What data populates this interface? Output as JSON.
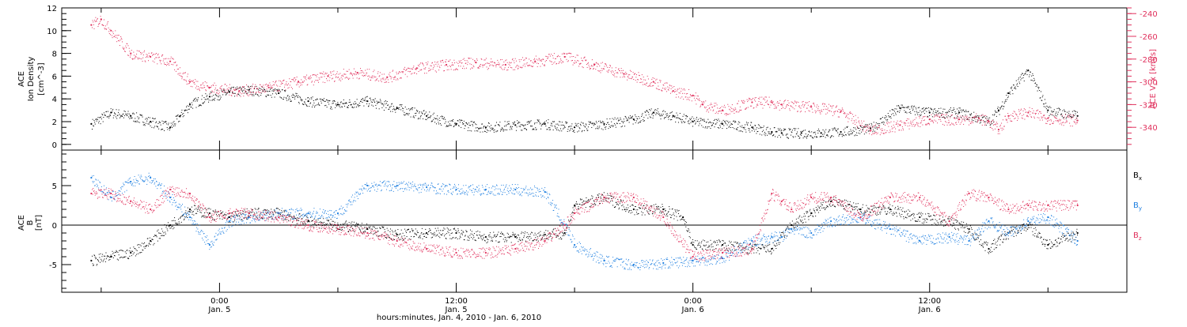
{
  "colors": {
    "black": "#000000",
    "blue": "#1e7fe0",
    "red": "#e0305c"
  },
  "chart_data": [
    {
      "type": "scatter",
      "panel": "top",
      "x_unit": "hours since 2010-01-04 00:00",
      "left_axis": {
        "label_lines": [
          "ACE",
          "Ion Density",
          "[cm^-3]"
        ],
        "ylim": [
          -0.5,
          12
        ],
        "ticks": [
          "0",
          "2",
          "4",
          "6",
          "8",
          "10",
          "12"
        ],
        "tick_values": [
          0,
          2,
          4,
          6,
          8,
          10,
          12
        ]
      },
      "right_axis": {
        "label": "ACE V_x [km/s]",
        "ylim": [
          -360,
          -235
        ],
        "ticks": [
          "-240",
          "-260",
          "-280",
          "-300",
          "-320",
          "-340"
        ],
        "tick_values": [
          -240,
          -260,
          -280,
          -300,
          -320,
          -340
        ]
      },
      "series": [
        {
          "axis": "left",
          "color": "black",
          "x": [
            17.5,
            18.5,
            19.5,
            20.5,
            21.5,
            22.0,
            22.5,
            23.5,
            24.5,
            25.5,
            27.0,
            28.5,
            30.0,
            31.5,
            33.0,
            34.5,
            36.0,
            37.5,
            39.0,
            40.5,
            42.0,
            43.5,
            45.0,
            46.0,
            47.0,
            48.0,
            49.5,
            51.0,
            52.0,
            52.5,
            53.5,
            54.5,
            55.5,
            57.0,
            58.5,
            60.0,
            61.5,
            62.5,
            63.0,
            63.5,
            64.0,
            65.0,
            66.0,
            67.5
          ],
          "y": [
            1.8,
            2.8,
            2.5,
            2.0,
            1.5,
            2.5,
            3.5,
            4.2,
            4.6,
            4.8,
            4.5,
            3.8,
            3.5,
            3.8,
            3.2,
            2.5,
            1.8,
            1.5,
            1.7,
            1.8,
            1.5,
            1.8,
            2.2,
            2.8,
            2.5,
            2.0,
            1.8,
            1.5,
            1.1,
            1.0,
            1.0,
            1.0,
            1.1,
            1.4,
            3.2,
            2.8,
            2.8,
            2.3,
            2.0,
            3.0,
            4.5,
            6.5,
            3.0,
            2.5
          ]
        },
        {
          "axis": "right",
          "color": "red",
          "x": [
            17.5,
            18.0,
            18.5,
            19.5,
            20.5,
            21.5,
            22.5,
            23.5,
            25.0,
            26.5,
            28.0,
            29.5,
            31.0,
            32.5,
            34.0,
            35.5,
            37.0,
            38.5,
            40.0,
            41.5,
            43.0,
            44.5,
            46.0,
            47.0,
            48.0,
            48.5,
            49.5,
            51.0,
            52.0,
            52.5,
            54.0,
            55.5,
            57.0,
            58.5,
            60.0,
            61.5,
            62.5,
            63.0,
            63.5,
            64.0,
            65.0,
            66.0,
            67.5
          ],
          "y": [
            -250,
            -245,
            -255,
            -275,
            -278,
            -282,
            -300,
            -305,
            -308,
            -305,
            -300,
            -295,
            -292,
            -296,
            -288,
            -285,
            -283,
            -285,
            -282,
            -278,
            -285,
            -293,
            -300,
            -308,
            -312,
            -320,
            -325,
            -318,
            -318,
            -320,
            -322,
            -326,
            -343,
            -338,
            -333,
            -333,
            -332,
            -335,
            -342,
            -330,
            -327,
            -332,
            -334
          ]
        }
      ]
    },
    {
      "type": "scatter",
      "panel": "bottom",
      "x_unit": "hours since 2010-01-04 00:00",
      "left_axis": {
        "label_lines": [
          "ACE",
          "B",
          "[nT]"
        ],
        "ylim": [
          -8.5,
          9.5
        ],
        "ticks": [
          "5",
          "0",
          "-5"
        ],
        "tick_values": [
          5,
          0,
          -5
        ]
      },
      "zero_line": true,
      "series": [
        {
          "name": "B_x",
          "color": "black",
          "x": [
            17.5,
            18.5,
            19.5,
            20.5,
            21.5,
            22.5,
            23.5,
            24.5,
            25.5,
            27.0,
            28.5,
            30.0,
            31.5,
            33.0,
            34.5,
            36.0,
            37.5,
            39.0,
            40.5,
            41.5,
            42.0,
            43.5,
            45.0,
            46.5,
            47.5,
            48.0,
            49.5,
            51.0,
            52.0,
            52.5,
            53.0,
            54.0,
            55.0,
            56.5,
            58.0,
            59.5,
            61.0,
            62.0,
            63.0,
            64.0,
            65.0,
            66.0,
            67.5
          ],
          "y": [
            -4.5,
            -4.0,
            -3.5,
            -2.0,
            0.0,
            2.0,
            1.5,
            1.0,
            1.5,
            1.5,
            0.5,
            0.0,
            -0.5,
            -1.2,
            -1.0,
            -1.0,
            -1.5,
            -1.5,
            -1.2,
            -1.0,
            2.5,
            3.5,
            2.0,
            2.0,
            1.0,
            -2.5,
            -2.5,
            -3.0,
            -3.0,
            -1.5,
            0.0,
            1.5,
            3.0,
            2.0,
            2.0,
            1.0,
            0.5,
            -0.5,
            -3.0,
            -1.0,
            0.0,
            -2.5,
            -1.0
          ]
        },
        {
          "name": "B_y",
          "color": "blue",
          "x": [
            17.5,
            18.5,
            19.5,
            20.5,
            21.5,
            22.5,
            23.5,
            24.5,
            25.5,
            27.0,
            28.5,
            30.0,
            31.5,
            33.0,
            34.5,
            36.0,
            37.5,
            39.0,
            40.5,
            41.5,
            42.0,
            43.5,
            45.0,
            46.5,
            48.0,
            49.5,
            51.0,
            52.0,
            52.5,
            53.0,
            54.0,
            55.0,
            56.5,
            58.0,
            59.5,
            61.0,
            62.0,
            63.0,
            64.0,
            65.0,
            66.0,
            67.5
          ],
          "y": [
            6.0,
            3.5,
            5.5,
            6.0,
            3.5,
            1.0,
            -2.5,
            0.5,
            1.0,
            1.5,
            1.5,
            1.5,
            5.0,
            5.0,
            4.8,
            4.5,
            4.5,
            4.5,
            4.2,
            0.0,
            -2.5,
            -4.5,
            -5.0,
            -4.8,
            -4.5,
            -4.2,
            -2.0,
            -1.5,
            -1.5,
            -0.5,
            -1.0,
            0.5,
            1.0,
            -0.5,
            -2.0,
            -1.5,
            -2.0,
            0.5,
            -1.0,
            0.5,
            1.0,
            -2.0
          ]
        },
        {
          "name": "B_z",
          "color": "red",
          "x": [
            17.5,
            18.5,
            19.5,
            20.5,
            21.5,
            22.5,
            23.5,
            24.5,
            25.5,
            27.0,
            28.5,
            30.0,
            31.5,
            33.0,
            34.5,
            36.0,
            37.5,
            39.0,
            40.5,
            41.5,
            42.0,
            43.5,
            45.0,
            46.5,
            48.0,
            49.5,
            51.0,
            52.0,
            52.5,
            53.0,
            54.0,
            55.0,
            56.5,
            58.0,
            59.5,
            61.0,
            62.0,
            63.0,
            64.0,
            65.0,
            66.0,
            67.5
          ],
          "y": [
            4.0,
            4.0,
            3.0,
            2.0,
            4.5,
            4.0,
            1.0,
            1.5,
            1.5,
            1.0,
            0.0,
            -0.5,
            -1.0,
            -2.0,
            -3.0,
            -3.5,
            -3.5,
            -3.0,
            -2.0,
            0.0,
            1.5,
            3.5,
            3.5,
            1.0,
            -4.0,
            -3.5,
            -3.0,
            4.0,
            3.0,
            2.0,
            3.5,
            3.5,
            1.0,
            3.5,
            3.5,
            0.5,
            4.0,
            3.5,
            2.0,
            2.5,
            2.5,
            2.5
          ]
        }
      ],
      "legend": [
        {
          "label": "B",
          "sub": "x",
          "color": "black"
        },
        {
          "label": "B",
          "sub": "y",
          "color": "blue"
        },
        {
          "label": "B",
          "sub": "z",
          "color": "red"
        }
      ]
    }
  ],
  "x_axis": {
    "xlim": [
      16,
      70
    ],
    "tick_values": [
      24,
      36,
      48,
      60
    ],
    "ticks": [
      {
        "time": "0:00",
        "date": "Jan. 5"
      },
      {
        "time": "12:00",
        "date": "Jan. 5"
      },
      {
        "time": "0:00",
        "date": "Jan. 6"
      },
      {
        "time": "12:00",
        "date": "Jan. 6"
      }
    ],
    "label": "hours:minutes, Jan. 4, 2010 - Jan. 6, 2010"
  }
}
